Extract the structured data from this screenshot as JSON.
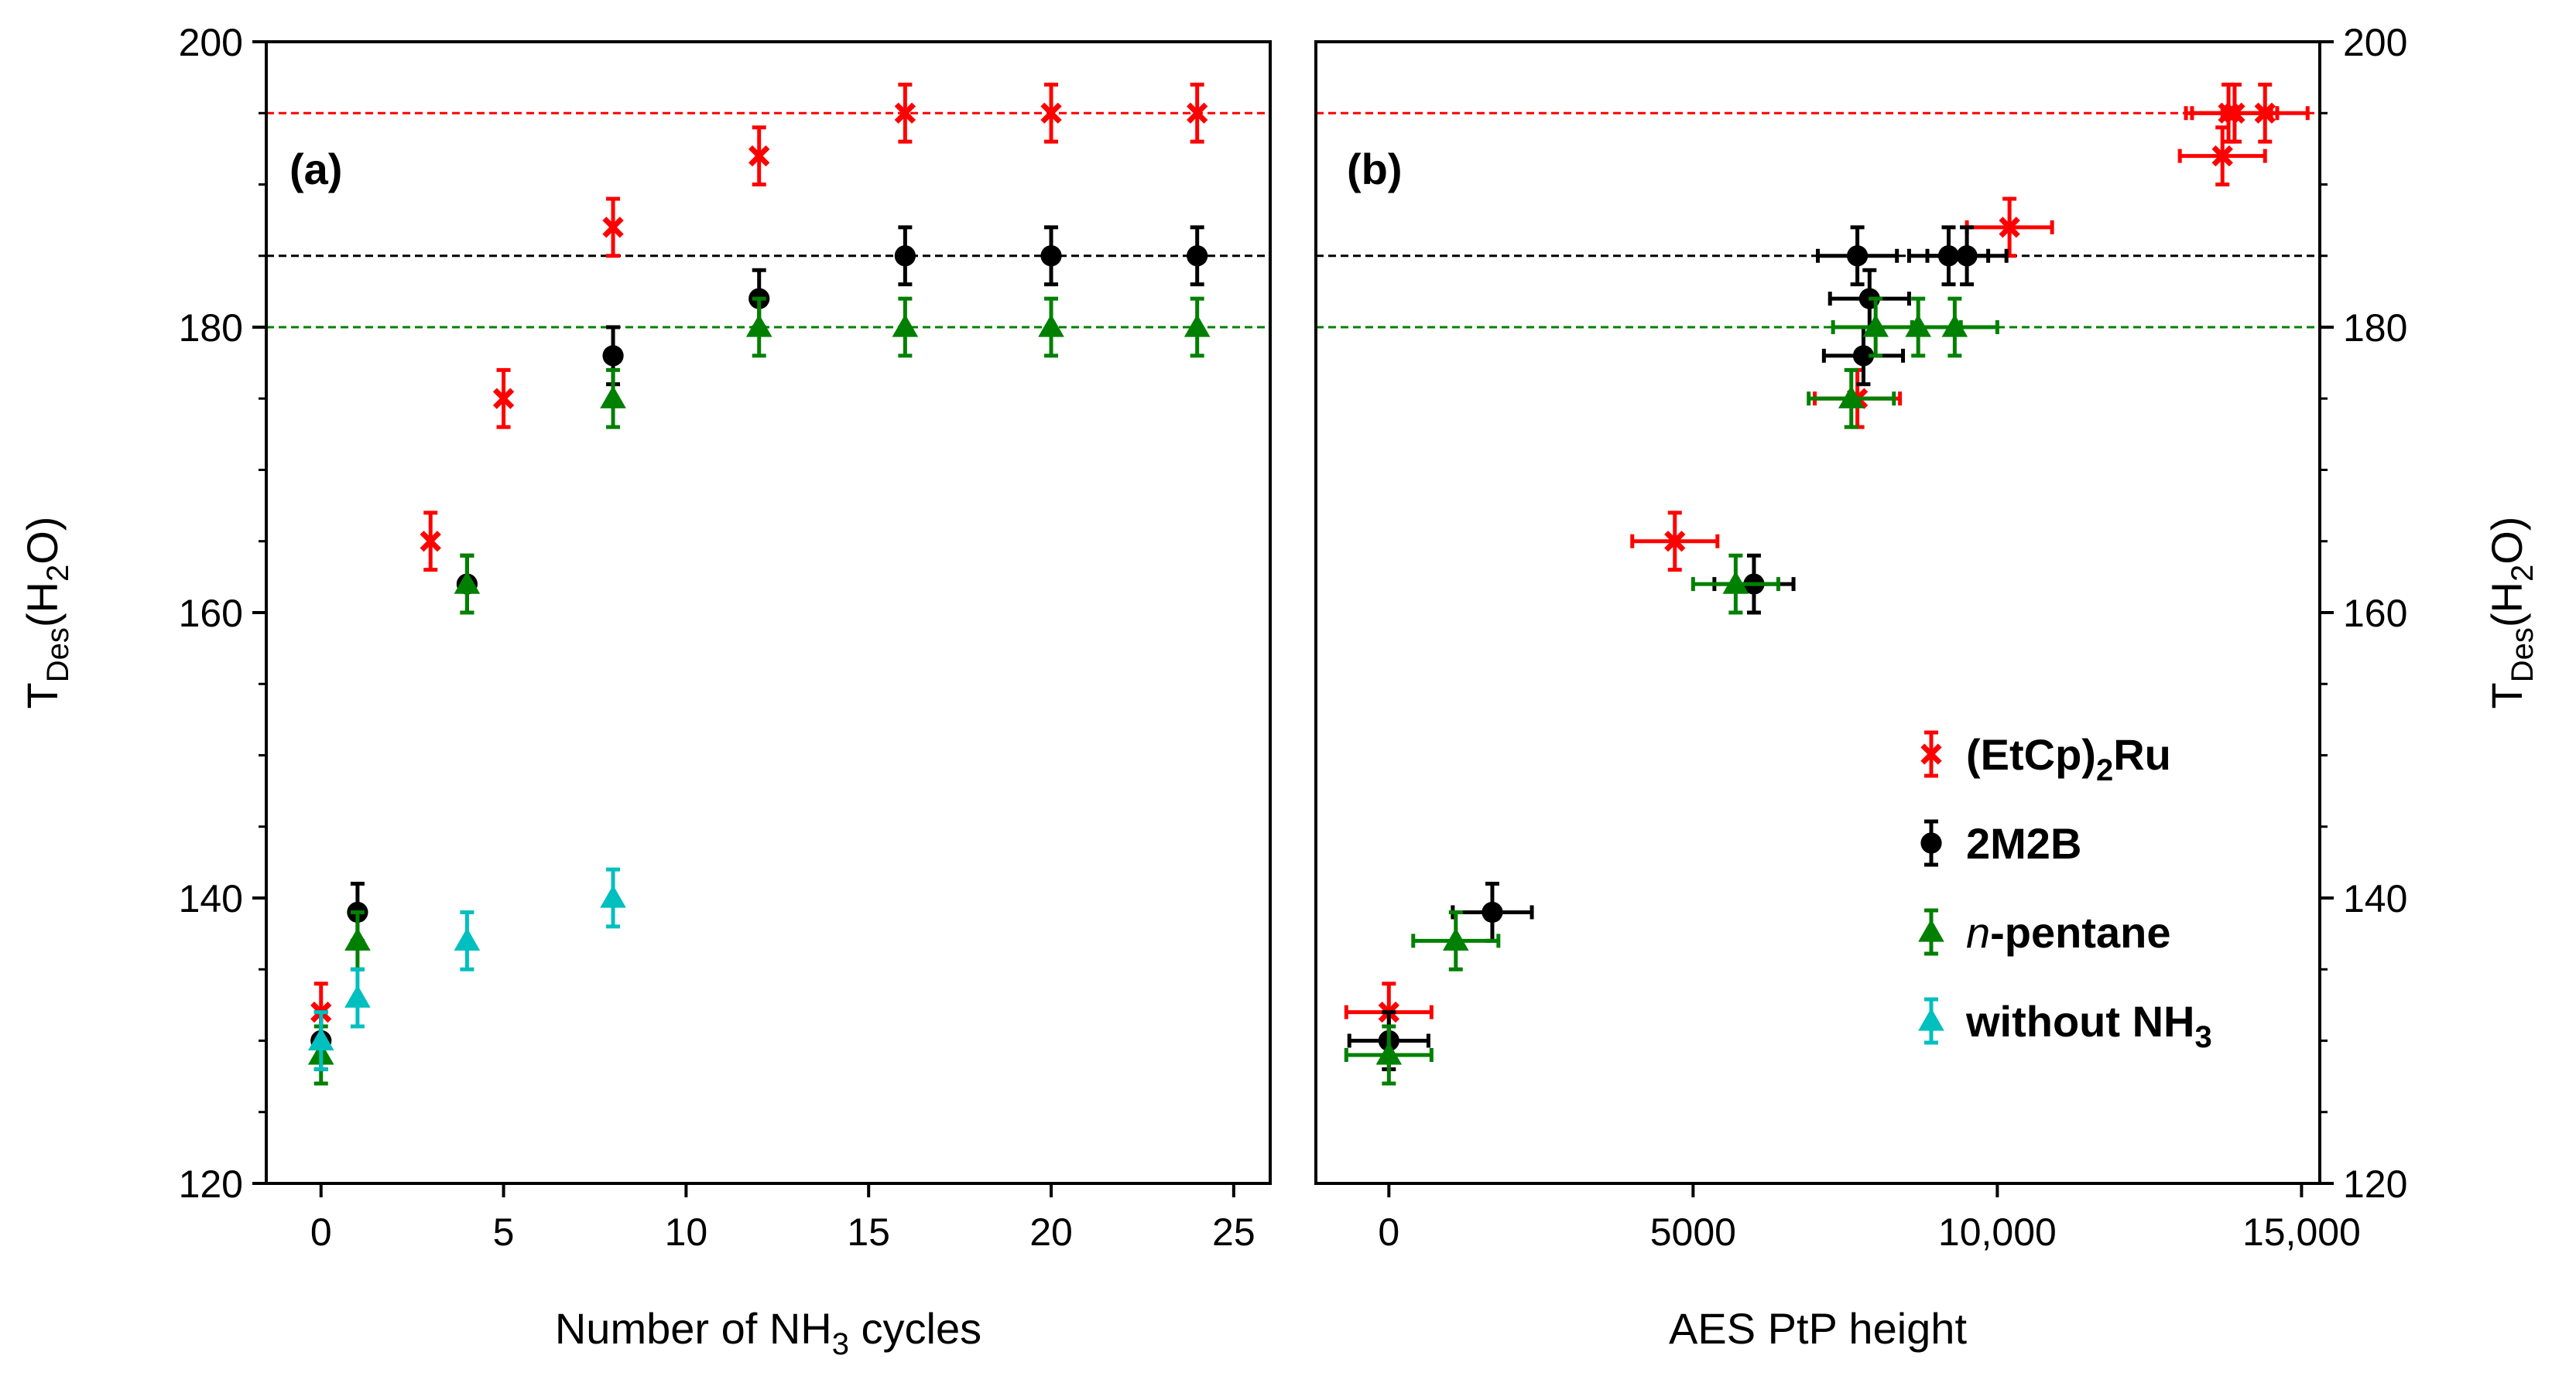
{
  "chart_data": [
    {
      "panel_label": "(a)",
      "type": "scatter",
      "xlabel": "Number of NH3 cycles",
      "xlabel_parts": {
        "pre": "Number of NH",
        "sub": "3",
        "post": " cycles"
      },
      "ylabel": "TDes(H2O)",
      "ylabel_parts": {
        "main": "T",
        "sub1": "Des",
        "mid": "(H",
        "sub2": "2",
        "post": "O)"
      },
      "xlim": [
        -1.5,
        26
      ],
      "ylim": [
        120,
        200
      ],
      "xticks": [
        0,
        5,
        10,
        15,
        20,
        25
      ],
      "xtick_labels": [
        "0",
        "5",
        "10",
        "15",
        "20",
        "25"
      ],
      "yticks": [
        120,
        140,
        160,
        180,
        200
      ],
      "ytick_labels": [
        "120",
        "140",
        "160",
        "180",
        "200"
      ],
      "reference_lines": [
        {
          "y": 195,
          "color": "#ff0000"
        },
        {
          "y": 185,
          "color": "#000000"
        },
        {
          "y": 180,
          "color": "#008000"
        }
      ],
      "series": [
        {
          "marker": "x",
          "color": "#ff0000",
          "x": [
            0,
            3,
            5,
            8,
            12,
            16,
            20,
            24
          ],
          "y": [
            132,
            165,
            175,
            187,
            192,
            195,
            195,
            195
          ],
          "yerr": 2
        },
        {
          "marker": "circle",
          "color": "#000000",
          "x": [
            0,
            1,
            4,
            8,
            12,
            16,
            20,
            24
          ],
          "y": [
            130,
            139,
            162,
            178,
            182,
            185,
            185,
            185
          ],
          "yerr": 2
        },
        {
          "marker": "triangle",
          "color": "#008000",
          "x": [
            0,
            1,
            4,
            8,
            12,
            16,
            20,
            24
          ],
          "y": [
            129,
            137,
            162,
            175,
            180,
            180,
            180,
            180
          ],
          "yerr": 2
        },
        {
          "marker": "triangle",
          "color": "#00bfbf",
          "x": [
            0,
            1,
            4,
            8
          ],
          "y": [
            130,
            133,
            137,
            140
          ],
          "yerr": 2
        }
      ]
    },
    {
      "panel_label": "(b)",
      "type": "scatter",
      "xlabel": "AES PtP height",
      "ylabel": "TDes(H2O)",
      "ylabel_parts": {
        "main": "T",
        "sub1": "Des",
        "mid": "(H",
        "sub2": "2",
        "post": "O)"
      },
      "xlim": [
        -1200,
        15300
      ],
      "ylim": [
        120,
        200
      ],
      "xticks": [
        0,
        5000,
        10000,
        15000
      ],
      "xtick_labels": [
        "0",
        "5000",
        "10,000",
        "15,000"
      ],
      "yticks": [
        120,
        140,
        160,
        180,
        200
      ],
      "ytick_labels": [
        "120",
        "140",
        "160",
        "180",
        "200"
      ],
      "reference_lines": [
        {
          "y": 195,
          "color": "#ff0000"
        },
        {
          "y": 185,
          "color": "#000000"
        },
        {
          "y": 180,
          "color": "#008000"
        }
      ],
      "series": [
        {
          "name": "(EtCp)2Ru",
          "marker": "x",
          "color": "#ff0000",
          "x": [
            0,
            4700,
            7700,
            10200,
            13700,
            13800,
            13900,
            14400
          ],
          "y": [
            132,
            165,
            175,
            187,
            192,
            195,
            195,
            195
          ],
          "xerr": 700,
          "yerr": 2
        },
        {
          "name": "2M2B",
          "marker": "circle",
          "color": "#000000",
          "x": [
            0,
            1700,
            6000,
            7800,
            7900,
            7700,
            9200,
            9500
          ],
          "y": [
            130,
            139,
            162,
            178,
            182,
            185,
            185,
            185
          ],
          "xerr": 650,
          "yerr": 2
        },
        {
          "name": "n-pentane",
          "marker": "triangle",
          "color": "#008000",
          "x": [
            0,
            1100,
            5700,
            7600,
            8000,
            8700,
            9300
          ],
          "y": [
            129,
            137,
            162,
            175,
            180,
            180,
            180
          ],
          "xerr": 700,
          "yerr": 2
        }
      ],
      "legend": {
        "position": "lower-right",
        "entries": [
          {
            "pre": "(EtCp)",
            "sub": "2",
            "post": "Ru",
            "marker": "x",
            "color": "#ff0000"
          },
          {
            "pre": "2M2B",
            "sub": "",
            "post": "",
            "marker": "circle",
            "color": "#000000"
          },
          {
            "italic": "n",
            "pre": "-pentane",
            "sub": "",
            "post": "",
            "marker": "triangle",
            "color": "#008000"
          },
          {
            "pre": "without NH",
            "sub": "3",
            "post": "",
            "marker": "triangle",
            "color": "#00bfbf"
          }
        ]
      }
    }
  ]
}
